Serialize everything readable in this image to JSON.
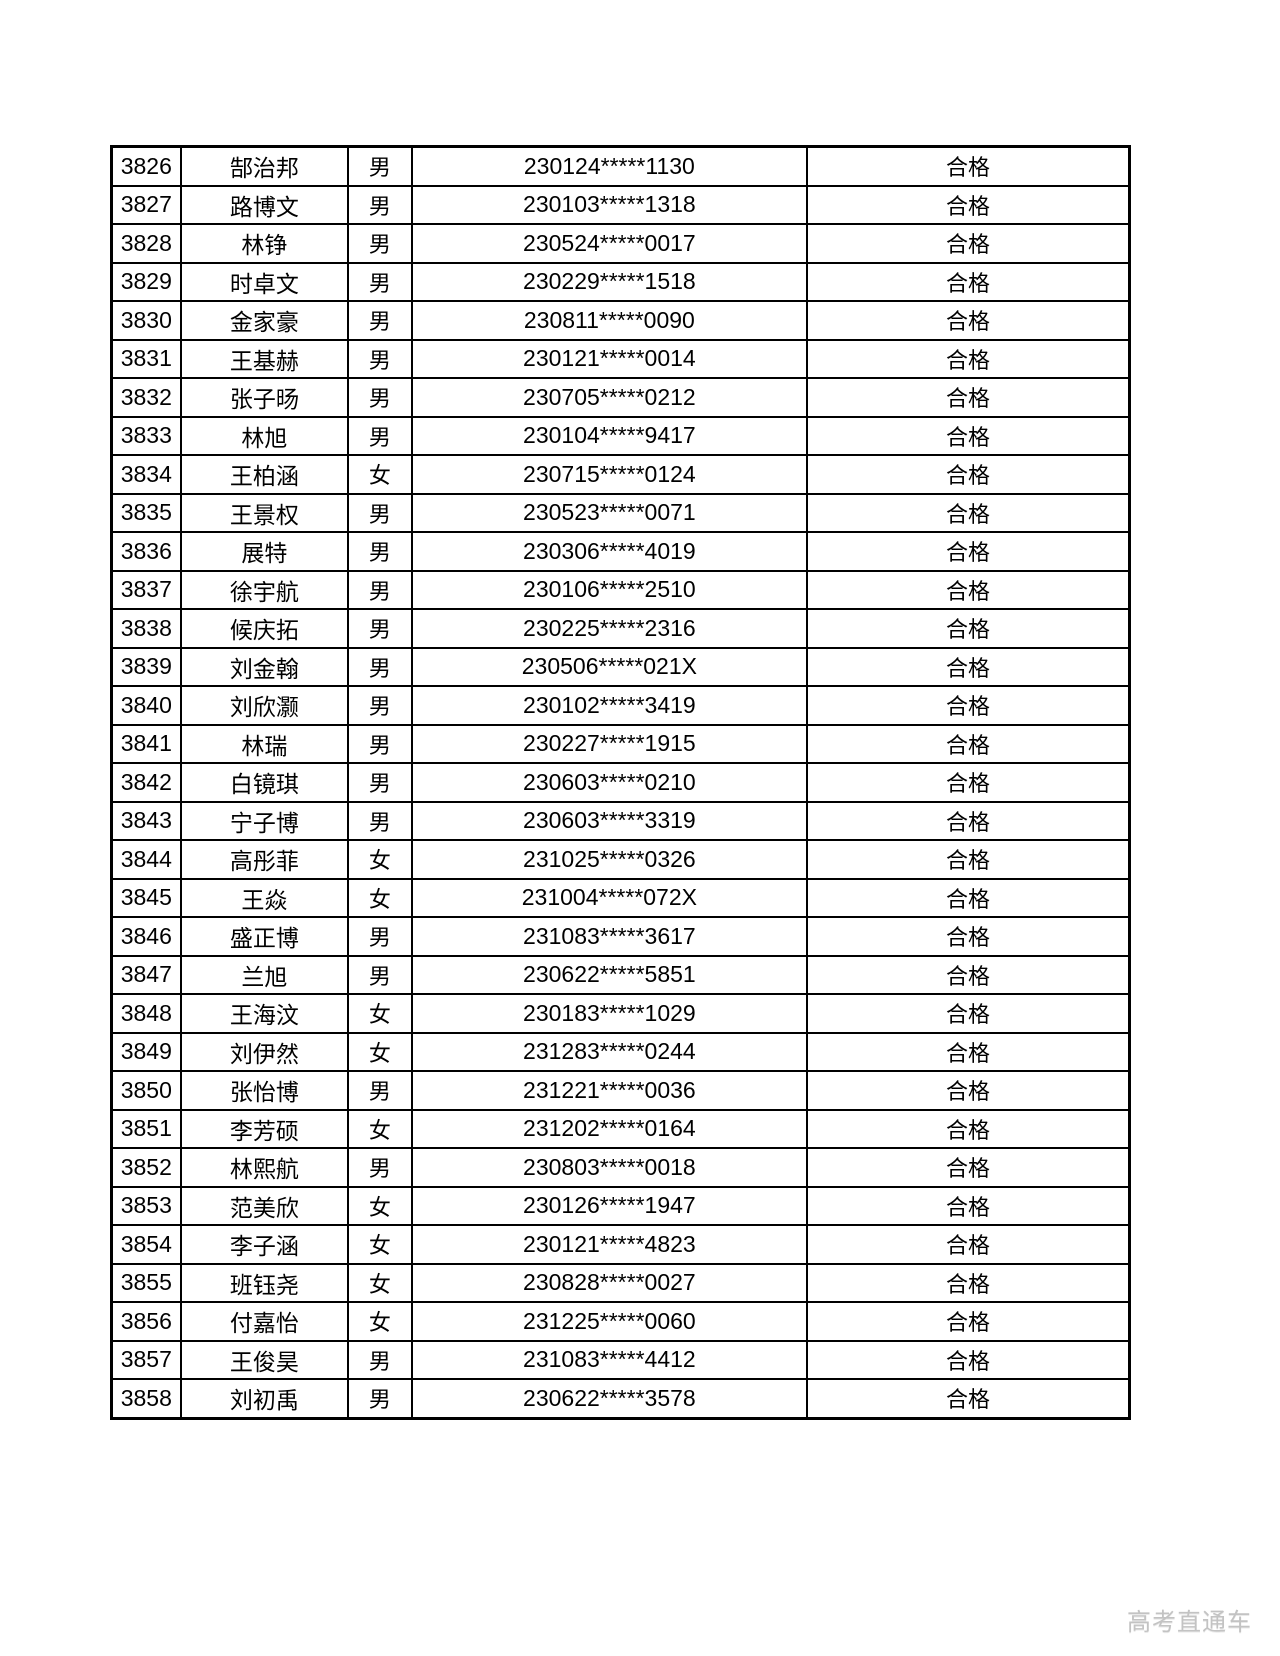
{
  "page": {
    "background": "#ffffff",
    "text_color": "#000000",
    "border_color": "#000000"
  },
  "watermark": {
    "text": "高考直通车",
    "color": "#c3c3c3"
  },
  "table": {
    "columns": [
      "no",
      "name",
      "gender",
      "id_number",
      "status"
    ],
    "rows": [
      {
        "no": "3826",
        "name": "郜治邦",
        "gender": "男",
        "id_number": "230124*****1130",
        "status": "合格"
      },
      {
        "no": "3827",
        "name": "路博文",
        "gender": "男",
        "id_number": "230103*****1318",
        "status": "合格"
      },
      {
        "no": "3828",
        "name": "林铮",
        "gender": "男",
        "id_number": "230524*****0017",
        "status": "合格"
      },
      {
        "no": "3829",
        "name": "时卓文",
        "gender": "男",
        "id_number": "230229*****1518",
        "status": "合格"
      },
      {
        "no": "3830",
        "name": "金家豪",
        "gender": "男",
        "id_number": "230811*****0090",
        "status": "合格"
      },
      {
        "no": "3831",
        "name": "王基赫",
        "gender": "男",
        "id_number": "230121*****0014",
        "status": "合格"
      },
      {
        "no": "3832",
        "name": "张子旸",
        "gender": "男",
        "id_number": "230705*****0212",
        "status": "合格"
      },
      {
        "no": "3833",
        "name": "林旭",
        "gender": "男",
        "id_number": "230104*****9417",
        "status": "合格"
      },
      {
        "no": "3834",
        "name": "王柏涵",
        "gender": "女",
        "id_number": "230715*****0124",
        "status": "合格"
      },
      {
        "no": "3835",
        "name": "王景权",
        "gender": "男",
        "id_number": "230523*****0071",
        "status": "合格"
      },
      {
        "no": "3836",
        "name": "展特",
        "gender": "男",
        "id_number": "230306*****4019",
        "status": "合格"
      },
      {
        "no": "3837",
        "name": "徐宇航",
        "gender": "男",
        "id_number": "230106*****2510",
        "status": "合格"
      },
      {
        "no": "3838",
        "name": "候庆拓",
        "gender": "男",
        "id_number": "230225*****2316",
        "status": "合格"
      },
      {
        "no": "3839",
        "name": "刘金翰",
        "gender": "男",
        "id_number": "230506*****021X",
        "status": "合格"
      },
      {
        "no": "3840",
        "name": "刘欣灏",
        "gender": "男",
        "id_number": "230102*****3419",
        "status": "合格"
      },
      {
        "no": "3841",
        "name": "林瑞",
        "gender": "男",
        "id_number": "230227*****1915",
        "status": "合格"
      },
      {
        "no": "3842",
        "name": "白镜琪",
        "gender": "男",
        "id_number": "230603*****0210",
        "status": "合格"
      },
      {
        "no": "3843",
        "name": "宁子博",
        "gender": "男",
        "id_number": "230603*****3319",
        "status": "合格"
      },
      {
        "no": "3844",
        "name": "高彤菲",
        "gender": "女",
        "id_number": "231025*****0326",
        "status": "合格"
      },
      {
        "no": "3845",
        "name": "王焱",
        "gender": "女",
        "id_number": "231004*****072X",
        "status": "合格"
      },
      {
        "no": "3846",
        "name": "盛正博",
        "gender": "男",
        "id_number": "231083*****3617",
        "status": "合格"
      },
      {
        "no": "3847",
        "name": "兰旭",
        "gender": "男",
        "id_number": "230622*****5851",
        "status": "合格"
      },
      {
        "no": "3848",
        "name": "王海汶",
        "gender": "女",
        "id_number": "230183*****1029",
        "status": "合格"
      },
      {
        "no": "3849",
        "name": "刘伊然",
        "gender": "女",
        "id_number": "231283*****0244",
        "status": "合格"
      },
      {
        "no": "3850",
        "name": "张怡博",
        "gender": "男",
        "id_number": "231221*****0036",
        "status": "合格"
      },
      {
        "no": "3851",
        "name": "李芳硕",
        "gender": "女",
        "id_number": "231202*****0164",
        "status": "合格"
      },
      {
        "no": "3852",
        "name": "林熙航",
        "gender": "男",
        "id_number": "230803*****0018",
        "status": "合格"
      },
      {
        "no": "3853",
        "name": "范美欣",
        "gender": "女",
        "id_number": "230126*****1947",
        "status": "合格"
      },
      {
        "no": "3854",
        "name": "李子涵",
        "gender": "女",
        "id_number": "230121*****4823",
        "status": "合格"
      },
      {
        "no": "3855",
        "name": "班钰尧",
        "gender": "女",
        "id_number": "230828*****0027",
        "status": "合格"
      },
      {
        "no": "3856",
        "name": "付嘉怡",
        "gender": "女",
        "id_number": "231225*****0060",
        "status": "合格"
      },
      {
        "no": "3857",
        "name": "王俊昊",
        "gender": "男",
        "id_number": "231083*****4412",
        "status": "合格"
      },
      {
        "no": "3858",
        "name": "刘初禹",
        "gender": "男",
        "id_number": "230622*****3578",
        "status": "合格"
      }
    ]
  }
}
